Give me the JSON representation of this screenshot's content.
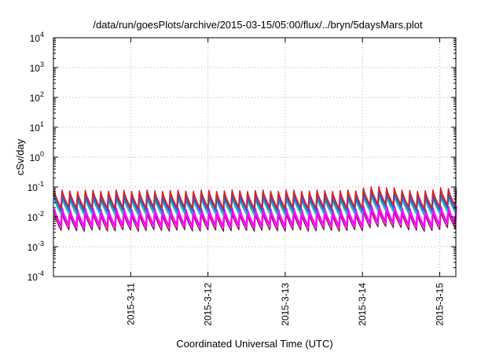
{
  "chart_data": {
    "type": "line",
    "title": "/data/run/goesPlots/archive/2015-03-15/05:00/flux/../bryn/5daysMars.plot",
    "xlabel": "Coordinated Universal Time (UTC)",
    "ylabel": "cSv/day",
    "yscale": "log",
    "ylim": [
      0.0001,
      10000
    ],
    "y_ticks": [
      {
        "base": "10",
        "exp": "-4"
      },
      {
        "base": "10",
        "exp": "-3"
      },
      {
        "base": "10",
        "exp": "-2"
      },
      {
        "base": "10",
        "exp": "-1"
      },
      {
        "base": "10",
        "exp": "0"
      },
      {
        "base": "10",
        "exp": "1"
      },
      {
        "base": "10",
        "exp": "2"
      },
      {
        "base": "10",
        "exp": "3"
      },
      {
        "base": "10",
        "exp": "4"
      }
    ],
    "xlim": [
      "2015-03-10T00:00",
      "2015-03-15T05:00"
    ],
    "x_ticks": [
      "2015-3-11",
      "2015-3-12",
      "2015-3-13",
      "2015-3-14",
      "2015-3-15"
    ],
    "x_tick_dates": [
      "2015-03-11T00:00",
      "2015-03-12T00:00",
      "2015-03-13T00:00",
      "2015-03-14T00:00",
      "2015-03-15T00:00"
    ],
    "grid": true,
    "cycle_hours": 2.4,
    "series": [
      {
        "color": "#e41a1c",
        "peak": 0.075,
        "trough": 0.02,
        "width": 1.6
      },
      {
        "color": "#2a63d6",
        "peak": 0.058,
        "trough": 0.016,
        "width": 2.4
      },
      {
        "color": "#1ab0b0",
        "peak": 0.042,
        "trough": 0.012,
        "width": 1.6
      },
      {
        "color": "#ff00ff",
        "peak": 0.018,
        "trough": 0.0048,
        "width": 2.6
      },
      {
        "color": "#7a1a4a",
        "peak": 0.013,
        "trough": 0.0035,
        "width": 1.4
      }
    ],
    "enhancements": [
      {
        "from": "2015-03-14T00:00",
        "to": "2015-03-14T10:00",
        "factor": 1.3
      },
      {
        "from": "2015-03-14T22:00",
        "to": "2015-03-15T05:00",
        "factor": 1.25
      }
    ]
  }
}
